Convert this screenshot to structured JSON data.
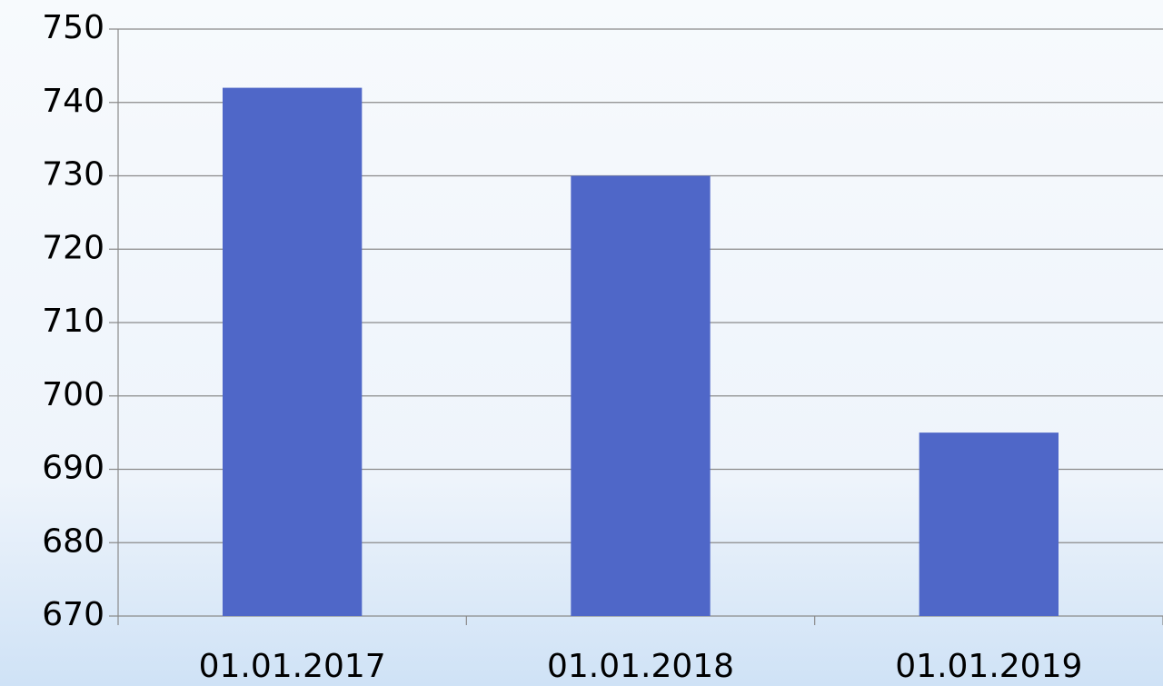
{
  "chart_data": {
    "type": "bar",
    "categories": [
      "01.01.2017",
      "01.01.2018",
      "01.01.2019"
    ],
    "values": [
      742,
      730,
      695
    ],
    "color": "#4f67c8",
    "ylim": [
      670,
      750
    ],
    "yticks": [
      670,
      680,
      690,
      700,
      710,
      720,
      730,
      740,
      750
    ],
    "grid": true
  }
}
